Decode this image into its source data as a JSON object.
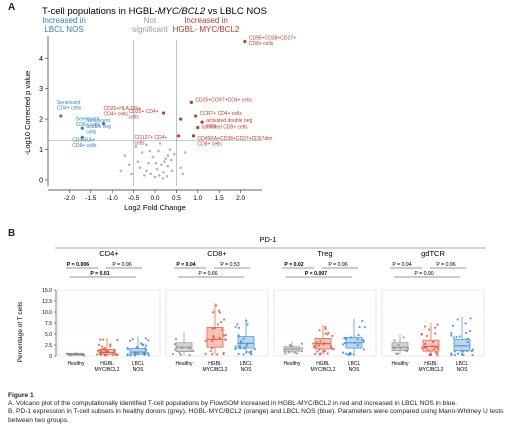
{
  "panel_a": {
    "letter": "A",
    "title_prefix": "T-cell populations in HGBL-",
    "title_italic": "MYC/BCL2",
    "title_suffix": " vs LBLC NOS",
    "group_left": [
      "Increased in",
      "LBCL NOS"
    ],
    "group_middle": [
      "Not",
      "significant"
    ],
    "group_right": [
      "Increased in",
      "HGBL- MYC/BCL2"
    ],
    "colors": {
      "left": "#2f7fc1",
      "right": "#c0392b",
      "gray": "#9a9a9a"
    }
  },
  "panel_b": {
    "letter": "B",
    "pd1_label": "PD-1",
    "y_label": "Percentage of T cells",
    "group_colors": {
      "healthy": "#8c8c8c",
      "hgbl": "#e8553a",
      "lbcl": "#3a8fd6"
    }
  },
  "chart_data": [
    {
      "type": "scatter",
      "title": "T-cell populations in HGBL-MYC/BCL2 vs LBLC NOS",
      "xlabel": "Log2 Fold Change",
      "ylabel": "-Log10 Corrected p value",
      "xlim": [
        -2.5,
        2.5
      ],
      "ylim": [
        -0.2,
        4.6
      ],
      "x_ticks": [
        "-2.0",
        "-1.5",
        "-1.0",
        "-0.5",
        "0.0",
        "0.5",
        "1.0",
        "1.5",
        "2.0"
      ],
      "y_ticks": [
        "0",
        "1",
        "2",
        "3",
        "4"
      ],
      "threshold_y": 1.3,
      "threshold_x": [
        -0.5,
        0.5
      ],
      "labeled_points": [
        {
          "x": 2.1,
          "y": 4.55,
          "label": "CD95+CD38+CD27+ CD8+ cells",
          "group": "right"
        },
        {
          "x": 0.85,
          "y": 2.55,
          "label": "CD25+CCR7+CD4+ cells",
          "group": "right"
        },
        {
          "x": 0.95,
          "y": 2.1,
          "label": "CCR7+ CD4+ cells",
          "group": "right"
        },
        {
          "x": 1.1,
          "y": 1.9,
          "label": "activated double neg cells",
          "group": "right"
        },
        {
          "x": 1.0,
          "y": 1.72,
          "label": "activated CD8+ cells",
          "group": "right"
        },
        {
          "x": 0.6,
          "y": 2.0,
          "label": "CD25+ CD4+ cells",
          "group": "right"
        },
        {
          "x": 0.2,
          "y": 2.2,
          "label": "CD25+HLA-DR+ CD4+ cells",
          "group": "right"
        },
        {
          "x": 0.55,
          "y": 1.45,
          "label": "CD127+ CD4+ cells",
          "group": "right"
        },
        {
          "x": 0.9,
          "y": 1.45,
          "label": "CD45RA+CD38+CD27+CD57dim CD8+ cells",
          "group": "right"
        },
        {
          "x": -2.2,
          "y": 2.1,
          "label": "Senescent CD4+ cells",
          "group": "left"
        },
        {
          "x": -1.7,
          "y": 1.7,
          "label": "Senescent double neg cells",
          "group": "left"
        },
        {
          "x": -1.2,
          "y": 1.85,
          "label": "Senescent CD8+ cells",
          "group": "left"
        },
        {
          "x": -1.7,
          "y": 1.4,
          "label": "CD45RA+ CD8+ cells",
          "group": "left"
        }
      ],
      "ns_points": [
        [
          -0.4,
          0.6
        ],
        [
          -0.3,
          0.9
        ],
        [
          -0.2,
          0.3
        ],
        [
          -0.1,
          0.2
        ],
        [
          0.0,
          0.1
        ],
        [
          0.05,
          0.35
        ],
        [
          0.1,
          0.15
        ],
        [
          0.15,
          0.5
        ],
        [
          0.2,
          0.25
        ],
        [
          0.25,
          0.7
        ],
        [
          0.3,
          0.45
        ],
        [
          0.35,
          1.0
        ],
        [
          0.4,
          0.3
        ],
        [
          -0.35,
          0.4
        ],
        [
          -0.25,
          0.15
        ],
        [
          -0.15,
          0.55
        ],
        [
          -0.05,
          0.75
        ],
        [
          0.08,
          0.95
        ],
        [
          0.18,
          0.05
        ],
        [
          0.28,
          0.12
        ],
        [
          0.38,
          0.65
        ],
        [
          0.45,
          0.85
        ],
        [
          -0.45,
          1.1
        ],
        [
          -0.2,
          1.15
        ],
        [
          0.12,
          1.2
        ],
        [
          0.3,
          0.8
        ],
        [
          -0.6,
          0.5
        ],
        [
          -0.7,
          0.8
        ],
        [
          -0.8,
          0.3
        ],
        [
          0.6,
          0.4
        ],
        [
          0.7,
          0.9
        ],
        [
          0.65,
          0.2
        ],
        [
          -0.55,
          0.2
        ],
        [
          0.02,
          0.55
        ],
        [
          -0.12,
          0.95
        ],
        [
          0.22,
          0.6
        ]
      ]
    },
    {
      "type": "box",
      "title": "PD-1",
      "ylabel": "Percentage of T cells",
      "ylim": [
        0,
        15
      ],
      "y_ticks": [
        "0",
        "2.5",
        "5.0",
        "7.5",
        "10.0",
        "12.5",
        "15.0"
      ],
      "group_labels": [
        "Healthy",
        "HGBL MYC/BCL2",
        "LBCL NOS"
      ],
      "subsets": [
        {
          "name": "CD4+",
          "p_values": [
            {
              "text": "P = 0.006",
              "bold": true
            },
            {
              "text": "P = 0.96",
              "bold": false
            },
            {
              "text": "P = 0.01",
              "bold": true
            }
          ],
          "groups": [
            {
              "median": 0.4,
              "q1": 0.2,
              "q3": 0.6,
              "min": 0.1,
              "max": 0.9
            },
            {
              "median": 0.8,
              "q1": 0.4,
              "q3": 1.5,
              "min": 0.1,
              "max": 4.0
            },
            {
              "median": 0.9,
              "q1": 0.4,
              "q3": 1.7,
              "min": 0.1,
              "max": 4.5
            }
          ]
        },
        {
          "name": "CD8+",
          "p_values": [
            {
              "text": "P = 0.04",
              "bold": true
            },
            {
              "text": "P = 0.53",
              "bold": false
            },
            {
              "text": "P = 0.66",
              "bold": false
            }
          ],
          "groups": [
            {
              "median": 2.0,
              "q1": 1.0,
              "q3": 3.0,
              "min": 0.2,
              "max": 5.5
            },
            {
              "median": 3.8,
              "q1": 2.0,
              "q3": 6.5,
              "min": 0.3,
              "max": 12.0
            },
            {
              "median": 2.9,
              "q1": 1.8,
              "q3": 4.4,
              "min": 0.3,
              "max": 8.5
            }
          ]
        },
        {
          "name": "Treg",
          "p_values": [
            {
              "text": "P = 0.02",
              "bold": true
            },
            {
              "text": "P = 0.96",
              "bold": false
            },
            {
              "text": "P = 0.007",
              "bold": true
            }
          ],
          "groups": [
            {
              "median": 1.6,
              "q1": 1.1,
              "q3": 2.1,
              "min": 0.5,
              "max": 3.3
            },
            {
              "median": 2.8,
              "q1": 1.6,
              "q3": 4.0,
              "min": 0.3,
              "max": 7.0
            },
            {
              "median": 3.0,
              "q1": 1.8,
              "q3": 4.2,
              "min": 0.3,
              "max": 8.5
            }
          ]
        },
        {
          "name": "gdTCR",
          "p_values": [
            {
              "text": "P = 0.94",
              "bold": false
            },
            {
              "text": "P = 0.96",
              "bold": false
            },
            {
              "text": "P = 0.90",
              "bold": false
            }
          ],
          "groups": [
            {
              "median": 2.0,
              "q1": 1.2,
              "q3": 3.0,
              "min": 0.4,
              "max": 5.0
            },
            {
              "median": 2.2,
              "q1": 1.1,
              "q3": 3.6,
              "min": 0.2,
              "max": 7.5
            },
            {
              "median": 2.3,
              "q1": 1.2,
              "q3": 3.8,
              "min": 0.2,
              "max": 9.0
            }
          ]
        }
      ]
    }
  ],
  "caption": {
    "figure_label": "Figure 1",
    "line_a": "A. Volcano plot of the computationally identified T-cell populations by FlowSOM increased in HGBL-MYC/BCL2 in red and increased in LBCL NOS in blue.",
    "line_b": "B. PD-1 expression in T-cell subsets in healthy donors (grey), HGBL-MYC/BCL2 (orange) and LBCL NOS (blue). Parameters were compared using Mann-Whitney U tests between two groups."
  }
}
